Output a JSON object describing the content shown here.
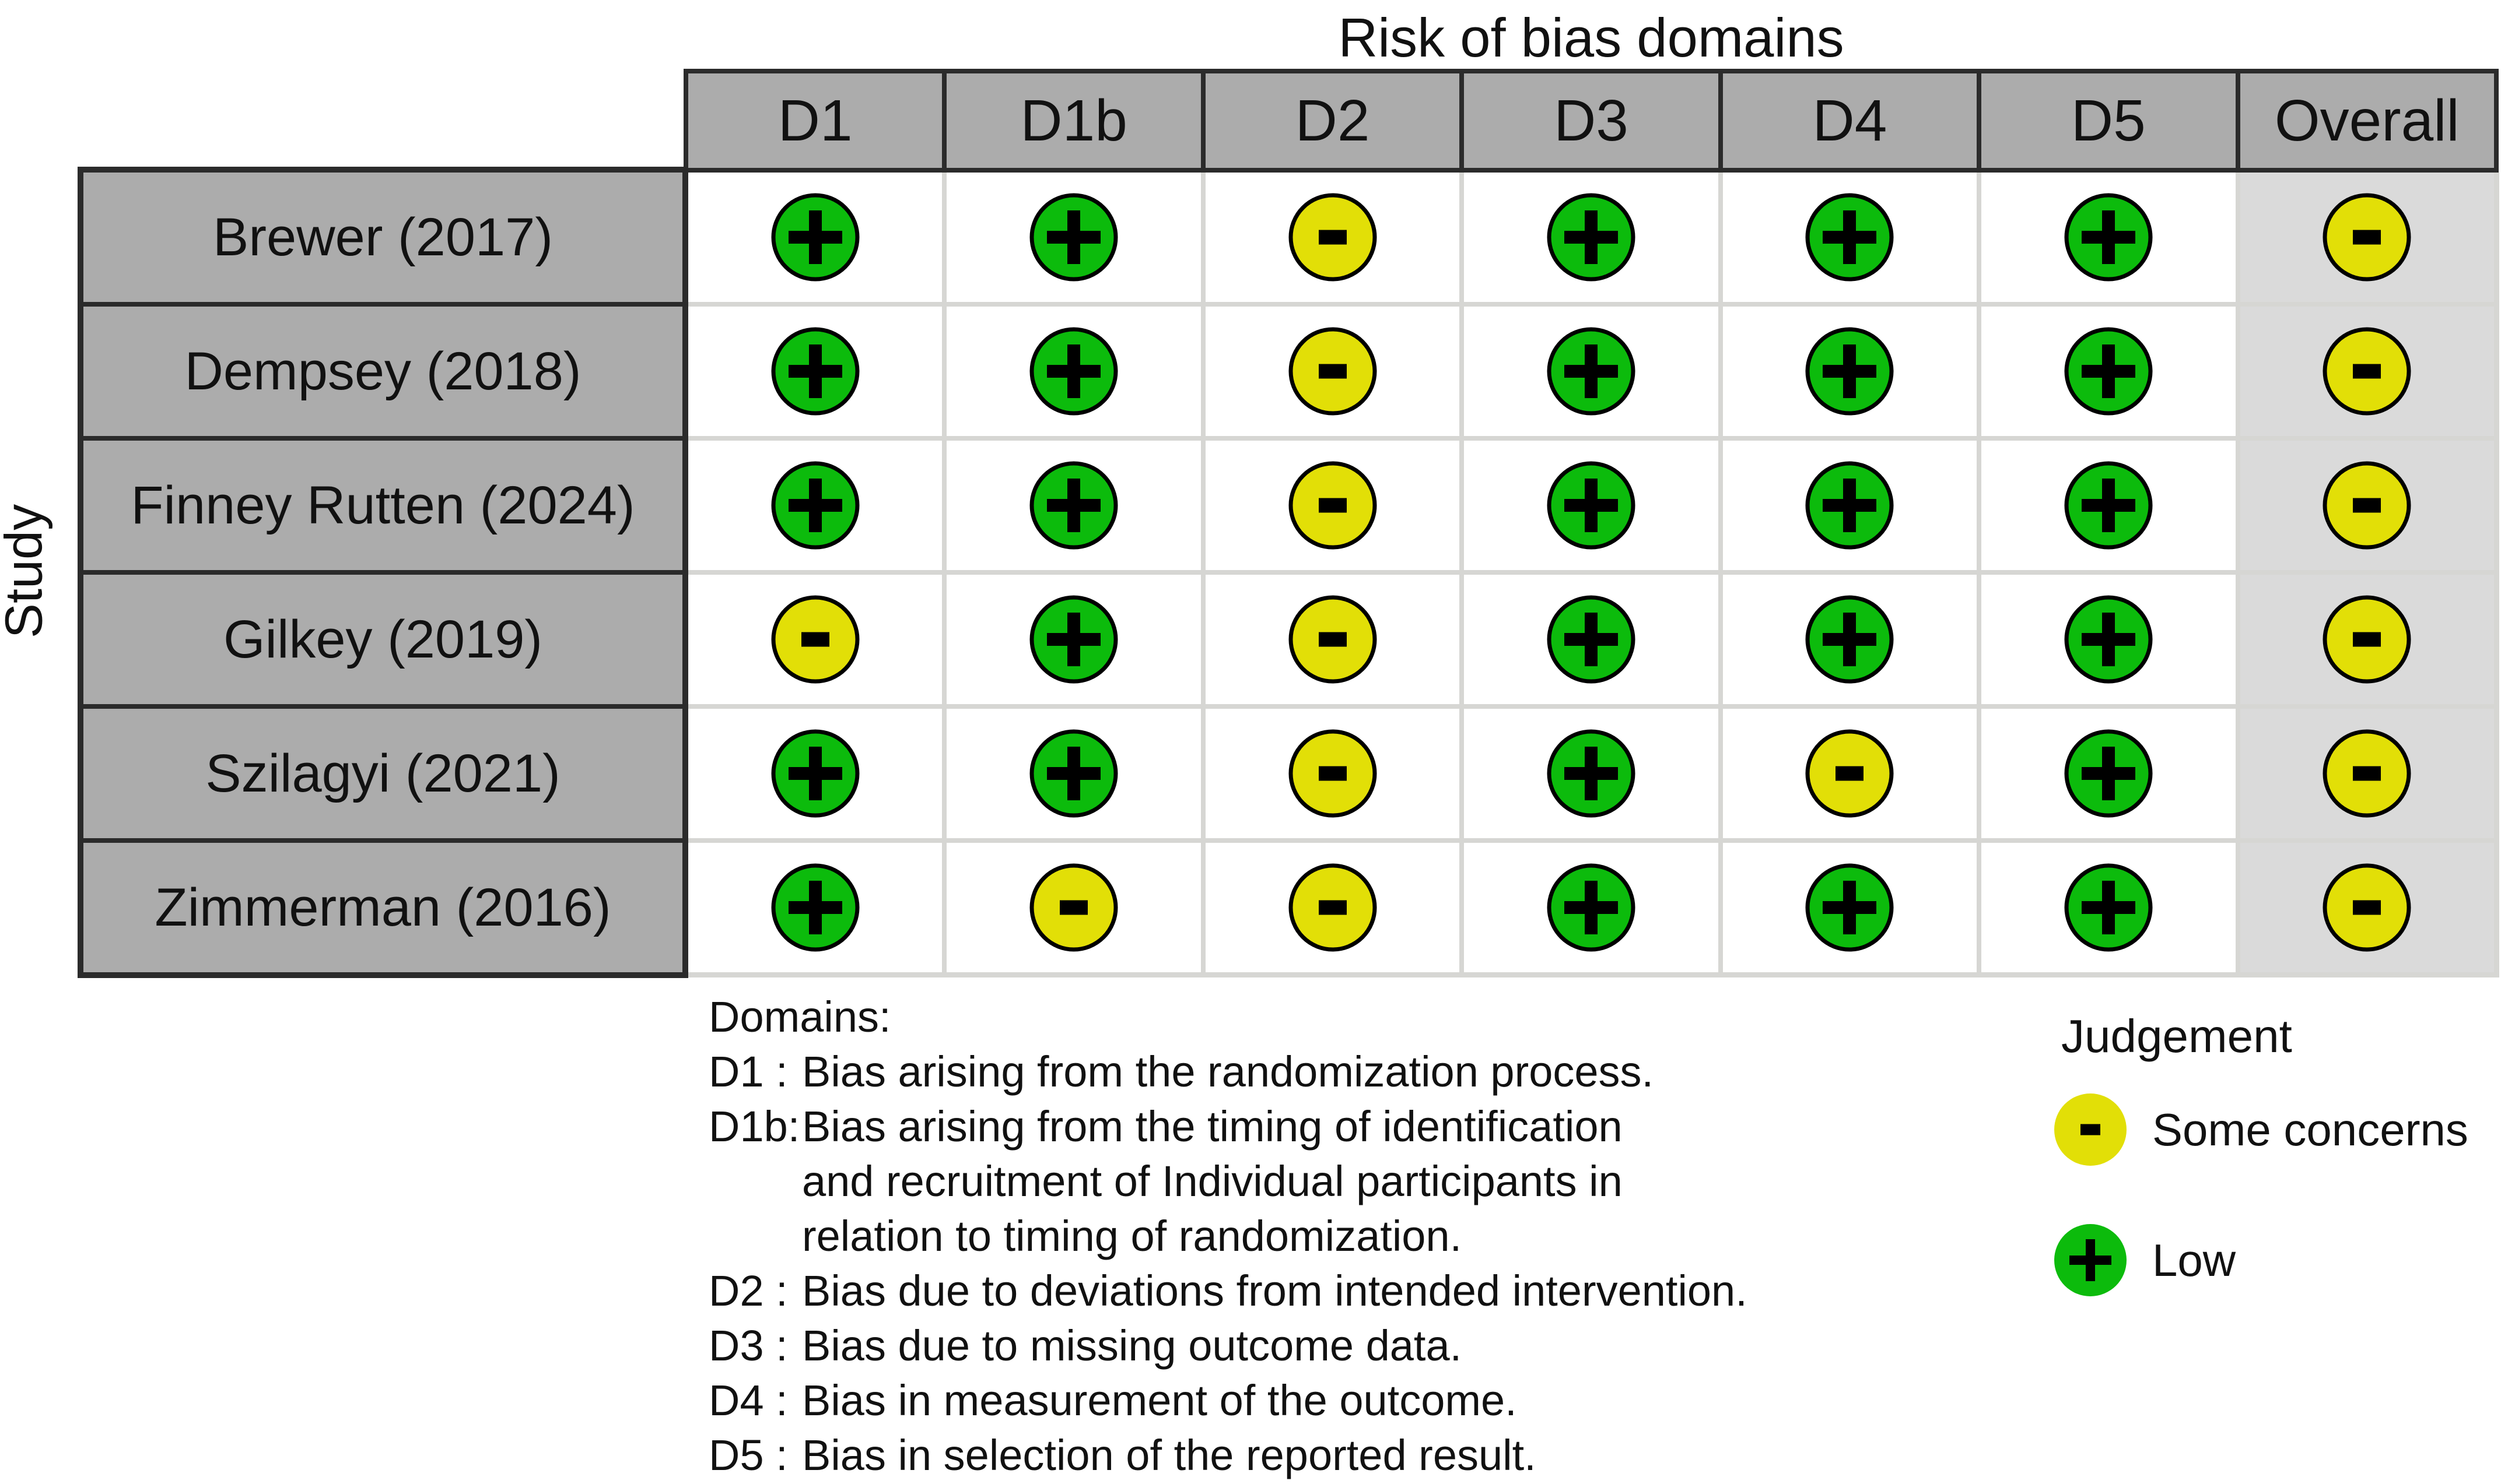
{
  "title": "Risk of bias domains",
  "axis_label": "Study",
  "columns": [
    "D1",
    "D1b",
    "D2",
    "D3",
    "D4",
    "D5",
    "Overall"
  ],
  "rows": [
    {
      "study": "Brewer (2017)",
      "judgments": [
        "low",
        "low",
        "some",
        "low",
        "low",
        "low",
        "some"
      ]
    },
    {
      "study": "Dempsey (2018)",
      "judgments": [
        "low",
        "low",
        "some",
        "low",
        "low",
        "low",
        "some"
      ]
    },
    {
      "study": "Finney Rutten (2024)",
      "judgments": [
        "low",
        "low",
        "some",
        "low",
        "low",
        "low",
        "some"
      ]
    },
    {
      "study": "Gilkey (2019)",
      "judgments": [
        "some",
        "low",
        "some",
        "low",
        "low",
        "low",
        "some"
      ]
    },
    {
      "study": "Szilagyi (2021)",
      "judgments": [
        "low",
        "low",
        "some",
        "low",
        "some",
        "low",
        "some"
      ]
    },
    {
      "study": "Zimmerman (2016)",
      "judgments": [
        "low",
        "some",
        "some",
        "low",
        "low",
        "low",
        "some"
      ]
    }
  ],
  "judgment_styles": {
    "low": {
      "label": "Low",
      "symbol": "+",
      "color": "#0cbb0c"
    },
    "some": {
      "label": "Some concerns",
      "symbol": "-",
      "color": "#e2df07"
    }
  },
  "legend": {
    "title": "Judgement",
    "items": [
      {
        "key": "some",
        "label": "Some concerns"
      },
      {
        "key": "low",
        "label": "Low"
      }
    ]
  },
  "domains_note": {
    "heading": "Domains:",
    "lines": [
      {
        "label": "D1 :",
        "text": "Bias arising from the randomization process."
      },
      {
        "label": "D1b:",
        "text": "Bias arising from the timing of identification"
      },
      {
        "label": "",
        "text": "and recruitment of Individual participants in"
      },
      {
        "label": "",
        "text": "relation to timing of randomization."
      },
      {
        "label": "D2 :",
        "text": "Bias due to deviations from intended intervention."
      },
      {
        "label": "D3 :",
        "text": "Bias due to missing outcome data."
      },
      {
        "label": "D4 :",
        "text": "Bias in measurement of the outcome."
      },
      {
        "label": "D5 :",
        "text": "Bias in selection of the reported result."
      }
    ]
  },
  "chart_data": {
    "type": "heatmap",
    "title": "Risk of bias domains",
    "ylabel": "Study",
    "x_categories": [
      "D1",
      "D1b",
      "D2",
      "D3",
      "D4",
      "D5",
      "Overall"
    ],
    "y_categories": [
      "Brewer (2017)",
      "Dempsey (2018)",
      "Finney Rutten (2024)",
      "Gilkey (2019)",
      "Szilagyi (2021)",
      "Zimmerman (2016)"
    ],
    "values": [
      [
        "Low",
        "Low",
        "Some concerns",
        "Low",
        "Low",
        "Low",
        "Some concerns"
      ],
      [
        "Low",
        "Low",
        "Some concerns",
        "Low",
        "Low",
        "Low",
        "Some concerns"
      ],
      [
        "Low",
        "Low",
        "Some concerns",
        "Low",
        "Low",
        "Low",
        "Some concerns"
      ],
      [
        "Some concerns",
        "Low",
        "Some concerns",
        "Low",
        "Low",
        "Low",
        "Some concerns"
      ],
      [
        "Low",
        "Low",
        "Some concerns",
        "Low",
        "Some concerns",
        "Low",
        "Some concerns"
      ],
      [
        "Low",
        "Some concerns",
        "Some concerns",
        "Low",
        "Low",
        "Low",
        "Some concerns"
      ]
    ],
    "legend_entries": [
      {
        "label": "Some concerns",
        "symbol": "-",
        "color": "#e2df07"
      },
      {
        "label": "Low",
        "symbol": "+",
        "color": "#0cbb0c"
      }
    ],
    "grid": "on",
    "legend_position": "bottom-right"
  }
}
